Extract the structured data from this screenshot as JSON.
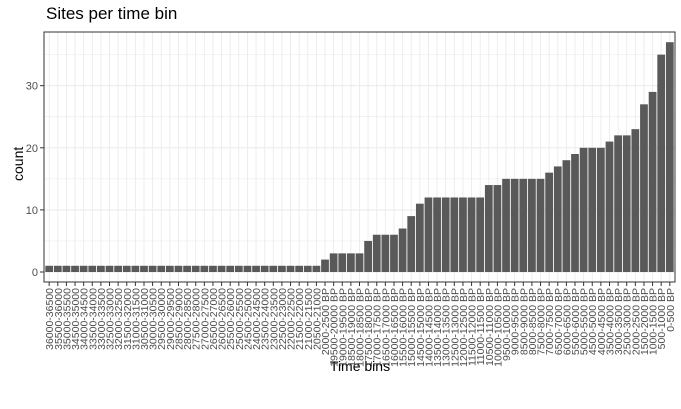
{
  "chart_data": {
    "type": "bar",
    "title": "Sites per time bin",
    "xlabel": "Time bins",
    "ylabel": "count",
    "ylim": [
      0,
      38
    ],
    "yticks": [
      0,
      10,
      20,
      30
    ],
    "grid": true,
    "categories": [
      "36000-36500",
      "35500-36000",
      "35000-35500",
      "34500-35000",
      "34000-34500",
      "33500-34000",
      "33000-33500",
      "32500-33000",
      "32000-32500",
      "31500-32000",
      "31000-31500",
      "30500-31000",
      "30000-30500",
      "29500-30000",
      "29000-29500",
      "28500-29000",
      "28000-28500",
      "27500-28000",
      "27000-27500",
      "26500-27000",
      "26000-26500",
      "25500-26000",
      "25000-25500",
      "24500-25000",
      "24000-24500",
      "23500-24000",
      "23000-23500",
      "22500-23000",
      "22000-22500",
      "21500-22000",
      "21000-21500",
      "20500-21000",
      "2000-2500 BP",
      "19500-20000 BP",
      "19000-19500 BP",
      "18500-19000 BP",
      "18000-18500 BP",
      "17500-18000 BP",
      "17000-17500 BP",
      "16500-17000 BP",
      "16000-16500 BP",
      "15500-16000 BP",
      "15000-15500 BP",
      "14500-15000 BP",
      "14000-14500 BP",
      "13500-14000 BP",
      "13000-13500 BP",
      "12500-13000 BP",
      "12000-12500 BP",
      "11500-12000 BP",
      "11000-11500 BP",
      "10500-11000 BP",
      "10000-10500 BP",
      "9500-10000 BP",
      "9000-9500 BP",
      "8500-9000 BP",
      "8000-8500 BP",
      "7500-8000 BP",
      "7000-7500 BP",
      "6500-7000 BP",
      "6000-6500 BP",
      "5500-6000 BP",
      "5000-5500 BP",
      "4500-5000 BP",
      "4000-4500 BP",
      "3500-4000 BP",
      "3000-3500 BP",
      "2500-3000 BP",
      "2000-2500 BP",
      "1500-2000 BP",
      "1000-1500 BP",
      "500-1000 BP",
      "0-500 BP"
    ],
    "values": [
      1,
      1,
      1,
      1,
      1,
      1,
      1,
      1,
      1,
      1,
      1,
      1,
      1,
      1,
      1,
      1,
      1,
      1,
      1,
      1,
      1,
      1,
      1,
      1,
      1,
      1,
      1,
      1,
      1,
      1,
      1,
      1,
      2,
      3,
      3,
      3,
      3,
      5,
      6,
      6,
      6,
      7,
      9,
      11,
      12,
      12,
      12,
      12,
      12,
      12,
      12,
      14,
      14,
      15,
      15,
      15,
      15,
      15,
      16,
      17,
      18,
      19,
      20,
      20,
      20,
      21,
      22,
      22,
      23,
      27,
      29,
      35,
      37
    ],
    "bar_color": "#595959",
    "panel_background": "#ffffff",
    "grid_color": "#ebebeb",
    "panel_border_color": "#333333"
  }
}
